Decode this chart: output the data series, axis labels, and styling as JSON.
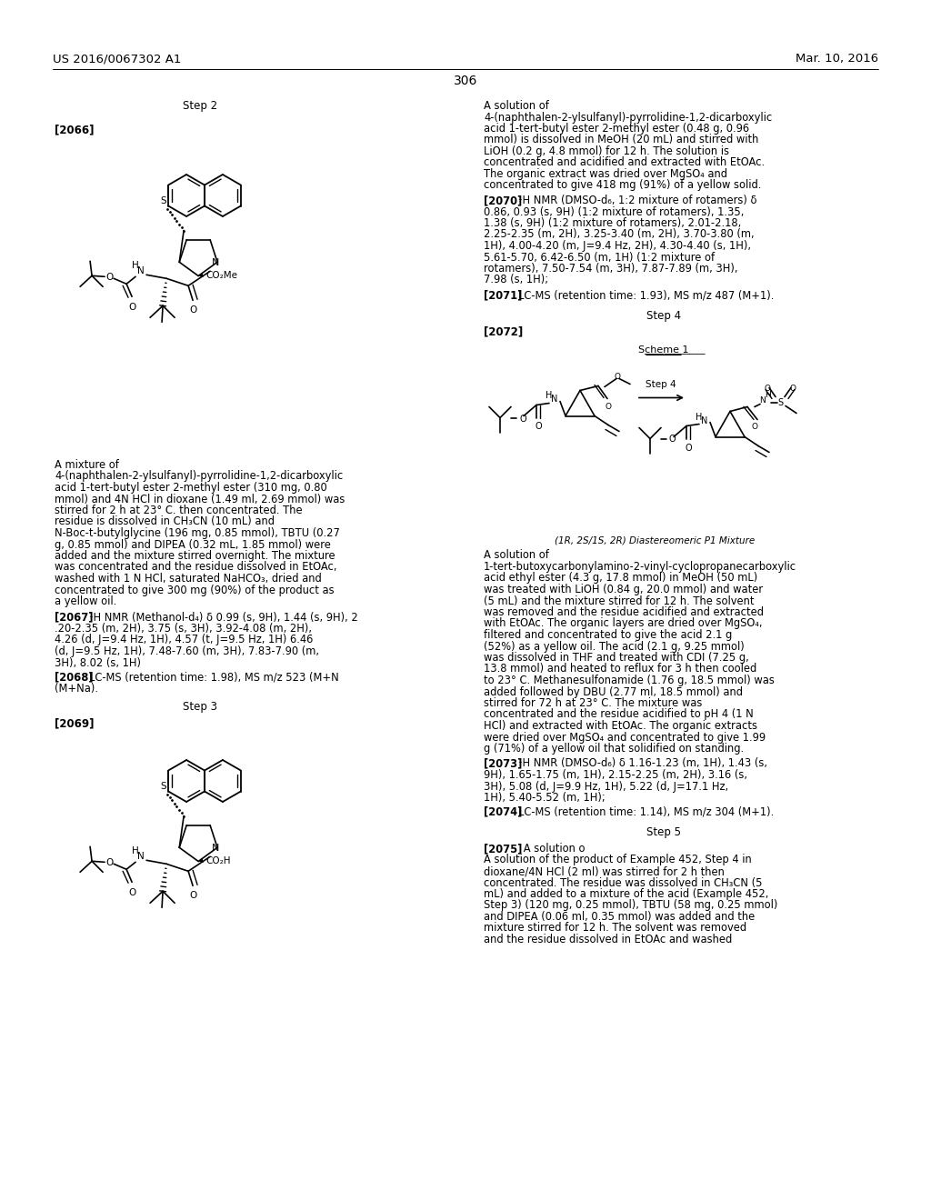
{
  "header_left": "US 2016/0067302 A1",
  "header_right": "Mar. 10, 2016",
  "page_number": "306",
  "col1_step2": "Step 2",
  "col1_ref2066": "[2066]",
  "col1_para1": "A mixture of 4-(naphthalen-2-ylsulfanyl)-pyrrolidine-1,2-dicarboxylic acid 1-tert-butyl ester 2-methyl ester (310 mg, 0.80 mmol) and 4N HCl in dioxane (1.49 ml, 2.69 mmol) was stirred for 2 h at 23° C. then concentrated. The residue is dissolved in CH₃CN (10 mL) and N-Boc-t-butylglycine (196 mg, 0.85 mmol), TBTU (0.27 g, 0.85 mmol) and DIPEA (0.32 mL, 1.85 mmol) were added and the mixture stirred overnight. The mixture was concentrated and the residue dissolved in EtOAc, washed with 1 N HCl, saturated NaHCO₃, dried and concentrated to give 300 mg (90%) of the product as a yellow oil.",
  "col1_ref2067_label": "[2067]",
  "col1_ref2067_text": "¹H NMR (Methanol-d₄) δ 0.99 (s, 9H), 1.44 (s, 9H), 2.20-2.35 (m, 2H), 3.75 (s, 3H), 3.92-4.08 (m, 2H), 4.26 (d, J=9.4 Hz, 1H), 4.57 (t, J=9.5 Hz, 1H) 6.46 (d, J=9.5 Hz, 1H), 7.48-7.60 (m, 3H), 7.83-7.90 (m, 3H), 8.02 (s, 1H)",
  "col1_ref2068_label": "[2068]",
  "col1_ref2068_text": "LC-MS (retention time: 1.98), MS m/z 523 (M+Na).",
  "col1_step3": "Step 3",
  "col1_ref2069": "[2069]",
  "col2_para1": "A solution of 4-(naphthalen-2-ylsulfanyl)-pyrrolidine-1,2-dicarboxylic acid 1-tert-butyl ester 2-methyl ester (0.48 g, 0.96 mmol) is dissolved in MeOH (20 mL) and stirred with LiOH (0.2 g, 4.8 mmol) for 12 h. The solution is concentrated and acidified and extracted with EtOAc. The organic extract was dried over MgSO₄ and concentrated to give 418 mg (91%) of a yellow solid.",
  "col2_ref2070_label": "[2070]",
  "col2_ref2070_text": "¹H NMR (DMSO-d₆, 1:2 mixture of rotamers) δ 0.86, 0.93 (s, 9H) (1:2 mixture of rotamers), 1.35, 1.38 (s, 9H) (1:2 mixture of rotamers), 2.01-2.18, 2.25-2.35 (m, 2H), 3.25-3.40 (m, 2H), 3.70-3.80 (m, 1H), 4.00-4.20 (m, J=9.4 Hz, 2H), 4.30-4.40 (s, 1H), 5.61-5.70, 6.42-6.50 (m, 1H) (1:2 mixture of rotamers), 7.50-7.54 (m, 3H), 7.87-7.89 (m, 3H), 7.98 (s, 1H);",
  "col2_ref2071_label": "[2071]",
  "col2_ref2071_text": "LC-MS (retention time: 1.93), MS m/z 487 (M+1).",
  "col2_step4": "Step 4",
  "col2_ref2072": "[2072]",
  "col2_scheme1": "Scheme 1",
  "col2_step4_arrow": "Step 4",
  "col2_diastereomeric": "(1R, 2S/1S, 2R) Diastereomeric P1 Mixture",
  "col2_para2": "A solution of 1-tert-butoxycarbonylamino-2-vinyl-cyclopropanecarboxylic acid ethyl ester (4.3 g, 17.8 mmol) in MeOH (50 mL) was treated with LiOH (0.84 g, 20.0 mmol) and water (5 mL) and the mixture stirred for 12 h. The solvent was removed and the residue acidified and extracted with EtOAc. The organic layers are dried over MgSO₄, filtered and concentrated to give the acid 2.1 g (52%) as a yellow oil. The acid (2.1 g, 9.25 mmol) was dissolved in THF and treated with CDI (7.25 g, 13.8 mmol) and heated to reflux for 3 h then cooled to 23° C. Methanesulfonamide (1.76 g, 18.5 mmol) was added followed by DBU (2.77 ml, 18.5 mmol) and stirred for 72 h at 23° C. The mixture was concentrated and the residue acidified to pH 4 (1 N HCl) and extracted with EtOAc. The organic extracts were dried over MgSO₄ and concentrated to give 1.99 g (71%) of a yellow oil that solidified on standing.",
  "col2_ref2073_label": "[2073]",
  "col2_ref2073_text": "¹H NMR (DMSO-d₆) δ 1.16-1.23 (m, 1H), 1.43 (s, 9H), 1.65-1.75 (m, 1H), 2.15-2.25 (m, 2H), 3.16 (s, 3H), 5.08 (d, J=9.9 Hz, 1H), 5.22 (d, J=17.1 Hz, 1H), 5.40-5.52 (m, 1H);",
  "col2_ref2074_label": "[2074]",
  "col2_ref2074_text": "LC-MS (retention time: 1.14), MS m/z 304 (M+1).",
  "col2_step5": "Step 5",
  "col2_ref2075_label": "[2075]",
  "col2_ref2075_text": "A solution of the product of Example 452, Step 4 in dioxane/4N HCl (2 ml) was stirred for 2 h then concentrated. The residue was dissolved in CH₃CN (5 mL) and added to a mixture of the acid (Example 452, Step 3) (120 mg, 0.25 mmol), TBTU (58 mg, 0.25 mmol) and DIPEA (0.06 ml, 0.35 mmol) was added and the mixture stirred for 12 h. The solvent was removed and the residue dissolved in EtOAc and washed"
}
